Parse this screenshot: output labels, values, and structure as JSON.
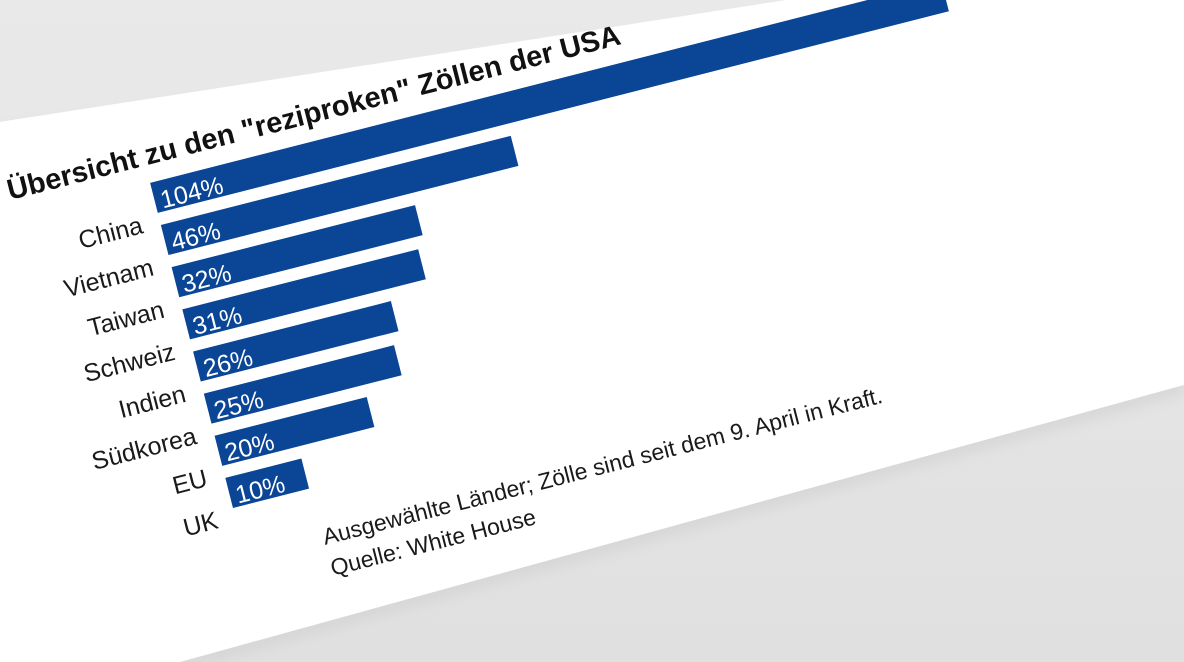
{
  "chart_data": {
    "type": "bar",
    "orientation": "horizontal",
    "title": "Übersicht zu den \"reziproken\" Zöllen der USA",
    "categories": [
      "China",
      "Vietnam",
      "Taiwan",
      "Schweiz",
      "Indien",
      "Südkorea",
      "EU",
      "UK"
    ],
    "values": [
      104,
      46,
      32,
      31,
      26,
      25,
      20,
      10
    ],
    "value_labels": [
      "104%",
      "46%",
      "32%",
      "31%",
      "26%",
      "25%",
      "20%",
      "10%"
    ],
    "unit": "%",
    "bar_color": "#0a4596",
    "note": "Ausgewählte Länder; Zölle sind seit dem 9. April in Kraft.",
    "source": "Quelle: White House"
  }
}
